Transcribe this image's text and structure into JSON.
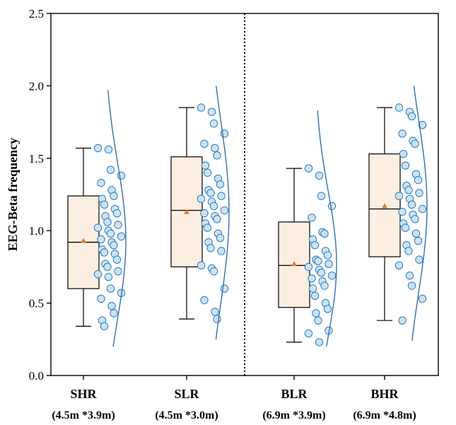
{
  "chart_data": {
    "type": "box",
    "title": "",
    "xlabel": "",
    "ylabel": "EEG-Beta frequency",
    "ylim": [
      0.0,
      2.5
    ],
    "yticks": [
      "0.0",
      "0.5",
      "1.0",
      "1.5",
      "2.0",
      "2.5"
    ],
    "divider_after_category": 2,
    "colors": {
      "box_fill": "#fdeee2",
      "box_stroke": "#000000",
      "mean_marker": "#e07b2c",
      "point_fill": "#c9e3f5",
      "point_stroke": "#2f79b9",
      "curve": "#2166ac"
    },
    "categories": [
      {
        "name": "SHR",
        "subtitle": "(4.5m *3.9m)",
        "whisker_low": 0.34,
        "q1": 0.6,
        "median": 0.92,
        "q3": 1.24,
        "whisker_high": 1.57,
        "mean": 0.93,
        "points": [
          1.57,
          1.56,
          1.42,
          1.38,
          1.33,
          1.28,
          1.24,
          1.22,
          1.18,
          1.15,
          1.12,
          1.1,
          1.06,
          1.04,
          1.02,
          1.0,
          0.98,
          0.96,
          0.94,
          0.92,
          0.9,
          0.87,
          0.85,
          0.84,
          0.8,
          0.77,
          0.75,
          0.72,
          0.7,
          0.68,
          0.6,
          0.57,
          0.53,
          0.48,
          0.43,
          0.38,
          0.34
        ]
      },
      {
        "name": "SLR",
        "subtitle": "(4.5m *3.0m)",
        "whisker_low": 0.39,
        "q1": 0.75,
        "median": 1.14,
        "q3": 1.51,
        "whisker_high": 1.85,
        "mean": 1.13,
        "points": [
          1.85,
          1.82,
          1.74,
          1.67,
          1.6,
          1.57,
          1.52,
          1.45,
          1.4,
          1.36,
          1.32,
          1.28,
          1.26,
          1.24,
          1.22,
          1.2,
          1.17,
          1.14,
          1.12,
          1.1,
          1.08,
          1.05,
          1.02,
          0.98,
          0.95,
          0.92,
          0.88,
          0.86,
          0.76,
          0.74,
          0.72,
          0.6,
          0.52,
          0.44,
          0.39
        ]
      },
      {
        "name": "BLR",
        "subtitle": "(6.9m *3.9m)",
        "whisker_low": 0.23,
        "q1": 0.47,
        "median": 0.76,
        "q3": 1.06,
        "whisker_high": 1.43,
        "mean": 0.77,
        "points": [
          1.43,
          1.38,
          1.24,
          1.17,
          1.09,
          0.99,
          0.98,
          0.94,
          0.9,
          0.86,
          0.83,
          0.8,
          0.79,
          0.77,
          0.75,
          0.73,
          0.71,
          0.69,
          0.67,
          0.65,
          0.62,
          0.6,
          0.55,
          0.5,
          0.46,
          0.43,
          0.38,
          0.31,
          0.29,
          0.23
        ]
      },
      {
        "name": "BHR",
        "subtitle": "(6.9m *4.8m)",
        "whisker_low": 0.38,
        "q1": 0.82,
        "median": 1.15,
        "q3": 1.53,
        "whisker_high": 1.85,
        "mean": 1.17,
        "points": [
          1.85,
          1.82,
          1.79,
          1.73,
          1.67,
          1.62,
          1.6,
          1.53,
          1.45,
          1.39,
          1.35,
          1.31,
          1.28,
          1.26,
          1.24,
          1.22,
          1.18,
          1.15,
          1.13,
          1.11,
          1.08,
          1.05,
          1.02,
          0.98,
          0.93,
          0.9,
          0.86,
          0.8,
          0.76,
          0.69,
          0.62,
          0.53,
          0.38
        ]
      }
    ]
  }
}
